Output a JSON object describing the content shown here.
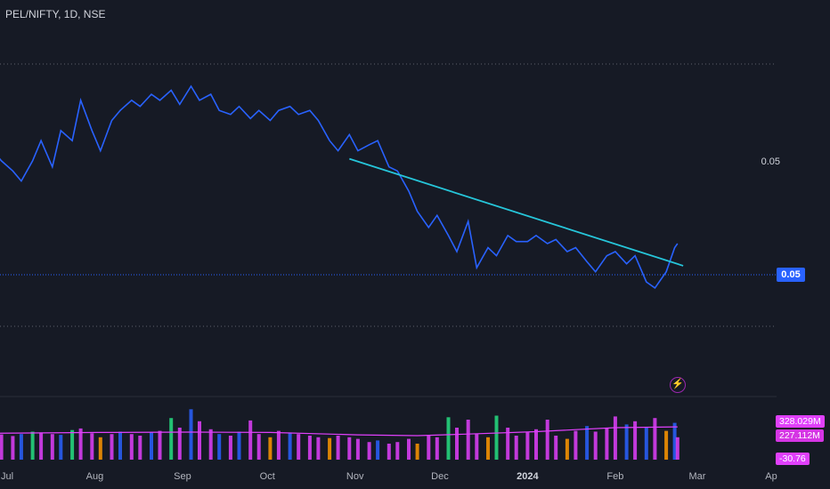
{
  "header": {
    "title": "PEL/NIFTY, 1D, NSE"
  },
  "price_axis": {
    "upper_label": "0.05",
    "current_label": "0.05"
  },
  "volume_axis": {
    "value1": "328.029M",
    "value2": "227.112M",
    "value3": "-30.76"
  },
  "x_axis": [
    {
      "label": "Jul",
      "bold": false
    },
    {
      "label": "Aug",
      "bold": false
    },
    {
      "label": "Sep",
      "bold": false
    },
    {
      "label": "Oct",
      "bold": false
    },
    {
      "label": "Nov",
      "bold": false
    },
    {
      "label": "Dec",
      "bold": false
    },
    {
      "label": "2024",
      "bold": true
    },
    {
      "label": "Feb",
      "bold": false
    },
    {
      "label": "Mar",
      "bold": false
    },
    {
      "label": "Ap",
      "bold": false
    }
  ],
  "colors": {
    "background": "#161a25",
    "price_line": "#2962ff",
    "trendline": "#26c6da",
    "volume_ma": "#e040fb",
    "volume_green": "#26de81",
    "volume_orange": "#ff9800",
    "volume_blue": "#2962ff",
    "volume_pink": "#e040fb"
  },
  "icons": {
    "flash": "flash-icon"
  },
  "chart_data": {
    "type": "line",
    "title": "PEL/NIFTY, 1D, NSE",
    "ylim": [
      0.0383,
      0.0558
    ],
    "price_series": [
      {
        "x": "2023-06-26",
        "y": 0.052
      },
      {
        "x": "2023-06-29",
        "y": 0.0515
      },
      {
        "x": "2023-07-03",
        "y": 0.051
      },
      {
        "x": "2023-07-06",
        "y": 0.0505
      },
      {
        "x": "2023-07-10",
        "y": 0.0515
      },
      {
        "x": "2023-07-13",
        "y": 0.0525
      },
      {
        "x": "2023-07-17",
        "y": 0.0512
      },
      {
        "x": "2023-07-20",
        "y": 0.053
      },
      {
        "x": "2023-07-24",
        "y": 0.0525
      },
      {
        "x": "2023-07-27",
        "y": 0.0545
      },
      {
        "x": "2023-07-31",
        "y": 0.053
      },
      {
        "x": "2023-08-03",
        "y": 0.052
      },
      {
        "x": "2023-08-07",
        "y": 0.0535
      },
      {
        "x": "2023-08-10",
        "y": 0.054
      },
      {
        "x": "2023-08-14",
        "y": 0.0545
      },
      {
        "x": "2023-08-17",
        "y": 0.0542
      },
      {
        "x": "2023-08-21",
        "y": 0.0548
      },
      {
        "x": "2023-08-24",
        "y": 0.0545
      },
      {
        "x": "2023-08-28",
        "y": 0.055
      },
      {
        "x": "2023-08-31",
        "y": 0.0543
      },
      {
        "x": "2023-09-04",
        "y": 0.0552
      },
      {
        "x": "2023-09-07",
        "y": 0.0545
      },
      {
        "x": "2023-09-11",
        "y": 0.0548
      },
      {
        "x": "2023-09-14",
        "y": 0.054
      },
      {
        "x": "2023-09-18",
        "y": 0.0538
      },
      {
        "x": "2023-09-21",
        "y": 0.0542
      },
      {
        "x": "2023-09-25",
        "y": 0.0536
      },
      {
        "x": "2023-09-28",
        "y": 0.054
      },
      {
        "x": "2023-10-02",
        "y": 0.0535
      },
      {
        "x": "2023-10-05",
        "y": 0.054
      },
      {
        "x": "2023-10-09",
        "y": 0.0542
      },
      {
        "x": "2023-10-12",
        "y": 0.0538
      },
      {
        "x": "2023-10-16",
        "y": 0.054
      },
      {
        "x": "2023-10-19",
        "y": 0.0535
      },
      {
        "x": "2023-10-23",
        "y": 0.0525
      },
      {
        "x": "2023-10-26",
        "y": 0.052
      },
      {
        "x": "2023-10-30",
        "y": 0.0528
      },
      {
        "x": "2023-11-02",
        "y": 0.052
      },
      {
        "x": "2023-11-06",
        "y": 0.0523
      },
      {
        "x": "2023-11-09",
        "y": 0.0525
      },
      {
        "x": "2023-11-13",
        "y": 0.0512
      },
      {
        "x": "2023-11-16",
        "y": 0.051
      },
      {
        "x": "2023-11-20",
        "y": 0.05
      },
      {
        "x": "2023-11-23",
        "y": 0.049
      },
      {
        "x": "2023-11-27",
        "y": 0.0482
      },
      {
        "x": "2023-11-30",
        "y": 0.0488
      },
      {
        "x": "2023-12-04",
        "y": 0.0478
      },
      {
        "x": "2023-12-07",
        "y": 0.047
      },
      {
        "x": "2023-12-11",
        "y": 0.0485
      },
      {
        "x": "2023-12-14",
        "y": 0.0462
      },
      {
        "x": "2023-12-18",
        "y": 0.0472
      },
      {
        "x": "2023-12-21",
        "y": 0.0468
      },
      {
        "x": "2023-12-25",
        "y": 0.0478
      },
      {
        "x": "2023-12-28",
        "y": 0.0475
      },
      {
        "x": "2024-01-01",
        "y": 0.0475
      },
      {
        "x": "2024-01-04",
        "y": 0.0478
      },
      {
        "x": "2024-01-08",
        "y": 0.0474
      },
      {
        "x": "2024-01-11",
        "y": 0.0476
      },
      {
        "x": "2024-01-15",
        "y": 0.047
      },
      {
        "x": "2024-01-18",
        "y": 0.0472
      },
      {
        "x": "2024-01-22",
        "y": 0.0465
      },
      {
        "x": "2024-01-25",
        "y": 0.046
      },
      {
        "x": "2024-01-29",
        "y": 0.0468
      },
      {
        "x": "2024-02-01",
        "y": 0.047
      },
      {
        "x": "2024-02-05",
        "y": 0.0464
      },
      {
        "x": "2024-02-08",
        "y": 0.0468
      },
      {
        "x": "2024-02-12",
        "y": 0.0455
      },
      {
        "x": "2024-02-15",
        "y": 0.0452
      },
      {
        "x": "2024-02-19",
        "y": 0.046
      },
      {
        "x": "2024-02-22",
        "y": 0.0472
      },
      {
        "x": "2024-02-23",
        "y": 0.0474
      }
    ],
    "trendline": [
      {
        "x": "2023-10-30",
        "y": 0.0516
      },
      {
        "x": "2024-02-25",
        "y": 0.0463
      }
    ],
    "horizontal_lines": [
      0.0563,
      0.0474,
      0.0433
    ],
    "volume": [
      {
        "x": "2023-06-26",
        "v": 164,
        "c": "pink"
      },
      {
        "x": "2023-06-29",
        "v": 158,
        "c": "pink"
      },
      {
        "x": "2023-07-03",
        "v": 148,
        "c": "pink"
      },
      {
        "x": "2023-07-06",
        "v": 160,
        "c": "blue"
      },
      {
        "x": "2023-07-10",
        "v": 175,
        "c": "green"
      },
      {
        "x": "2023-07-13",
        "v": 170,
        "c": "pink"
      },
      {
        "x": "2023-07-17",
        "v": 160,
        "c": "pink"
      },
      {
        "x": "2023-07-20",
        "v": 155,
        "c": "blue"
      },
      {
        "x": "2023-07-24",
        "v": 185,
        "c": "green"
      },
      {
        "x": "2023-07-27",
        "v": 195,
        "c": "pink"
      },
      {
        "x": "2023-07-31",
        "v": 165,
        "c": "pink"
      },
      {
        "x": "2023-08-03",
        "v": 140,
        "c": "orange"
      },
      {
        "x": "2023-08-07",
        "v": 160,
        "c": "pink"
      },
      {
        "x": "2023-08-10",
        "v": 175,
        "c": "blue"
      },
      {
        "x": "2023-08-14",
        "v": 160,
        "c": "pink"
      },
      {
        "x": "2023-08-17",
        "v": 150,
        "c": "pink"
      },
      {
        "x": "2023-08-21",
        "v": 170,
        "c": "blue"
      },
      {
        "x": "2023-08-24",
        "v": 180,
        "c": "pink"
      },
      {
        "x": "2023-08-28",
        "v": 260,
        "c": "green"
      },
      {
        "x": "2023-08-31",
        "v": 200,
        "c": "pink"
      },
      {
        "x": "2023-09-04",
        "v": 315,
        "c": "blue"
      },
      {
        "x": "2023-09-07",
        "v": 240,
        "c": "pink"
      },
      {
        "x": "2023-09-11",
        "v": 190,
        "c": "pink"
      },
      {
        "x": "2023-09-14",
        "v": 160,
        "c": "blue"
      },
      {
        "x": "2023-09-18",
        "v": 150,
        "c": "pink"
      },
      {
        "x": "2023-09-21",
        "v": 175,
        "c": "blue"
      },
      {
        "x": "2023-09-25",
        "v": 245,
        "c": "pink"
      },
      {
        "x": "2023-09-28",
        "v": 160,
        "c": "pink"
      },
      {
        "x": "2023-10-02",
        "v": 140,
        "c": "orange"
      },
      {
        "x": "2023-10-05",
        "v": 180,
        "c": "pink"
      },
      {
        "x": "2023-10-09",
        "v": 170,
        "c": "blue"
      },
      {
        "x": "2023-10-12",
        "v": 160,
        "c": "pink"
      },
      {
        "x": "2023-10-16",
        "v": 150,
        "c": "pink"
      },
      {
        "x": "2023-10-19",
        "v": 140,
        "c": "pink"
      },
      {
        "x": "2023-10-23",
        "v": 135,
        "c": "orange"
      },
      {
        "x": "2023-10-26",
        "v": 150,
        "c": "pink"
      },
      {
        "x": "2023-10-30",
        "v": 140,
        "c": "pink"
      },
      {
        "x": "2023-11-02",
        "v": 130,
        "c": "pink"
      },
      {
        "x": "2023-11-06",
        "v": 110,
        "c": "pink"
      },
      {
        "x": "2023-11-09",
        "v": 120,
        "c": "blue"
      },
      {
        "x": "2023-11-13",
        "v": 100,
        "c": "pink"
      },
      {
        "x": "2023-11-16",
        "v": 110,
        "c": "pink"
      },
      {
        "x": "2023-11-20",
        "v": 130,
        "c": "pink"
      },
      {
        "x": "2023-11-23",
        "v": 100,
        "c": "orange"
      },
      {
        "x": "2023-11-27",
        "v": 150,
        "c": "pink"
      },
      {
        "x": "2023-11-30",
        "v": 140,
        "c": "pink"
      },
      {
        "x": "2023-12-04",
        "v": 265,
        "c": "green"
      },
      {
        "x": "2023-12-07",
        "v": 200,
        "c": "pink"
      },
      {
        "x": "2023-12-11",
        "v": 250,
        "c": "pink"
      },
      {
        "x": "2023-12-14",
        "v": 160,
        "c": "pink"
      },
      {
        "x": "2023-12-18",
        "v": 140,
        "c": "orange"
      },
      {
        "x": "2023-12-21",
        "v": 275,
        "c": "green"
      },
      {
        "x": "2023-12-25",
        "v": 200,
        "c": "pink"
      },
      {
        "x": "2023-12-28",
        "v": 150,
        "c": "pink"
      },
      {
        "x": "2024-01-01",
        "v": 170,
        "c": "pink"
      },
      {
        "x": "2024-01-04",
        "v": 190,
        "c": "pink"
      },
      {
        "x": "2024-01-08",
        "v": 250,
        "c": "pink"
      },
      {
        "x": "2024-01-11",
        "v": 150,
        "c": "pink"
      },
      {
        "x": "2024-01-15",
        "v": 130,
        "c": "orange"
      },
      {
        "x": "2024-01-18",
        "v": 180,
        "c": "pink"
      },
      {
        "x": "2024-01-22",
        "v": 210,
        "c": "blue"
      },
      {
        "x": "2024-01-25",
        "v": 175,
        "c": "pink"
      },
      {
        "x": "2024-01-29",
        "v": 200,
        "c": "pink"
      },
      {
        "x": "2024-02-01",
        "v": 270,
        "c": "pink"
      },
      {
        "x": "2024-02-05",
        "v": 220,
        "c": "blue"
      },
      {
        "x": "2024-02-08",
        "v": 240,
        "c": "pink"
      },
      {
        "x": "2024-02-12",
        "v": 200,
        "c": "blue"
      },
      {
        "x": "2024-02-15",
        "v": 260,
        "c": "pink"
      },
      {
        "x": "2024-02-19",
        "v": 180,
        "c": "orange"
      },
      {
        "x": "2024-02-22",
        "v": 230,
        "c": "blue"
      },
      {
        "x": "2024-02-23",
        "v": 140,
        "c": "pink"
      }
    ],
    "volume_ma": [
      {
        "x": "2023-06-26",
        "v": 165
      },
      {
        "x": "2023-08-03",
        "v": 170
      },
      {
        "x": "2023-09-04",
        "v": 172
      },
      {
        "x": "2023-10-02",
        "v": 170
      },
      {
        "x": "2023-11-02",
        "v": 155
      },
      {
        "x": "2023-11-23",
        "v": 150
      },
      {
        "x": "2023-12-11",
        "v": 160
      },
      {
        "x": "2024-01-04",
        "v": 175
      },
      {
        "x": "2024-02-01",
        "v": 200
      },
      {
        "x": "2024-02-23",
        "v": 205
      }
    ]
  }
}
